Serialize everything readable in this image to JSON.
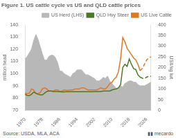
{
  "chart_data": {
    "type": "line",
    "title": "Figure 1. US cattle cycle vs US and QLD cattle prices",
    "ylabel": "million head",
    "y2label": "US¢/kg lwt",
    "annotations": [
      "Source: USDA, MLA, ACA",
      "▮▮ mecardo"
    ],
    "x": [
      1970,
      1971,
      1972,
      1973,
      1974,
      1975,
      1976,
      1977,
      1978,
      1979,
      1980,
      1981,
      1982,
      1983,
      1984,
      1985,
      1986,
      1987,
      1988,
      1989,
      1990,
      1991,
      1992,
      1993,
      1994,
      1995,
      1996,
      1997,
      1998,
      1999,
      2000,
      2001,
      2002,
      2003,
      2004,
      2005,
      2006,
      2007,
      2008,
      2009,
      2010,
      2011,
      2012,
      2013,
      2014,
      2015,
      2016,
      2017,
      2018,
      2019,
      2020,
      2021,
      2022,
      2023,
      2024,
      2025,
      2026,
      2027,
      2028
    ],
    "xlim": [
      1970,
      2028
    ],
    "xticks": [
      1970,
      1978,
      1986,
      1994,
      2002,
      2010,
      2018,
      2026
    ],
    "ylim": [
      70,
      140
    ],
    "yticks": [
      70,
      80,
      90,
      100,
      110,
      120,
      130,
      140
    ],
    "y2lim": [
      0,
      400
    ],
    "y2ticks": [
      0,
      50,
      100,
      150,
      200,
      250,
      300,
      350,
      400
    ],
    "grid": false,
    "legend": "upper right",
    "series": [
      {
        "name": "US Herd (LHS)",
        "type": "area",
        "color": "#b8b8b8",
        "values": [
          112,
          114,
          117,
          120,
          127,
          132,
          128,
          122,
          116,
          111,
          111,
          114,
          115,
          115,
          113,
          109,
          102,
          102,
          100,
          99,
          98,
          97,
          100,
          101,
          103,
          103,
          103,
          101,
          99,
          99,
          98,
          97,
          96,
          94,
          94,
          95,
          97,
          96,
          98,
          94,
          92,
          90,
          88,
          88,
          90,
          89,
          92,
          93,
          94,
          94,
          93,
          93,
          91,
          90,
          90,
          90,
          91,
          92,
          93
        ]
      },
      {
        "name": "QLD Hvy Steer",
        "axis": "y2",
        "color": "#4a7a28",
        "line_style": "solid",
        "values": [
          75,
          70,
          68,
          75,
          85,
          80,
          75,
          72,
          72,
          80,
          88,
          90,
          90,
          88,
          88,
          88,
          87,
          86,
          86,
          87,
          87,
          87,
          87,
          87,
          87,
          87,
          87,
          87,
          87,
          87,
          87,
          87,
          88,
          88,
          88,
          88,
          90,
          90,
          90,
          90,
          95,
          98,
          100,
          105,
          120,
          200,
          215,
          205,
          240,
          215,
          195,
          190,
          165,
          155,
          null,
          null,
          null,
          null,
          null
        ]
      },
      {
        "axis": "y2",
        "color": "#4a7a28",
        "line_style": "dashed",
        "values": [
          null,
          null,
          null,
          null,
          null,
          null,
          null,
          null,
          null,
          null,
          null,
          null,
          null,
          null,
          null,
          null,
          null,
          null,
          null,
          null,
          null,
          null,
          null,
          null,
          null,
          null,
          null,
          null,
          null,
          null,
          null,
          null,
          null,
          null,
          null,
          null,
          null,
          null,
          null,
          null,
          null,
          null,
          null,
          null,
          null,
          null,
          null,
          null,
          null,
          null,
          null,
          null,
          null,
          155,
          150,
          148,
          155,
          160,
          158
        ]
      },
      {
        "name": "US Live Cattle",
        "axis": "y2",
        "color": "#e07820",
        "line_style": "solid",
        "values": [
          80,
          78,
          80,
          100,
          95,
          78,
          78,
          82,
          100,
          105,
          100,
          90,
          90,
          90,
          95,
          95,
          88,
          90,
          95,
          93,
          93,
          95,
          95,
          100,
          100,
          100,
          105,
          105,
          100,
          95,
          95,
          95,
          95,
          95,
          100,
          105,
          100,
          100,
          110,
          125,
          130,
          145,
          155,
          180,
          240,
          340,
          320,
          290,
          275,
          260,
          245,
          235,
          215,
          185,
          null,
          null,
          null,
          null,
          null
        ]
      },
      {
        "axis": "y2",
        "color": "#e07820",
        "line_style": "dashed",
        "values": [
          null,
          null,
          null,
          null,
          null,
          null,
          null,
          null,
          null,
          null,
          null,
          null,
          null,
          null,
          null,
          null,
          null,
          null,
          null,
          null,
          null,
          null,
          null,
          null,
          null,
          null,
          null,
          null,
          null,
          null,
          null,
          null,
          null,
          null,
          null,
          null,
          null,
          null,
          null,
          null,
          null,
          null,
          null,
          null,
          null,
          null,
          null,
          null,
          null,
          null,
          null,
          null,
          null,
          185,
          195,
          215,
          235,
          245,
          250
        ]
      }
    ]
  }
}
